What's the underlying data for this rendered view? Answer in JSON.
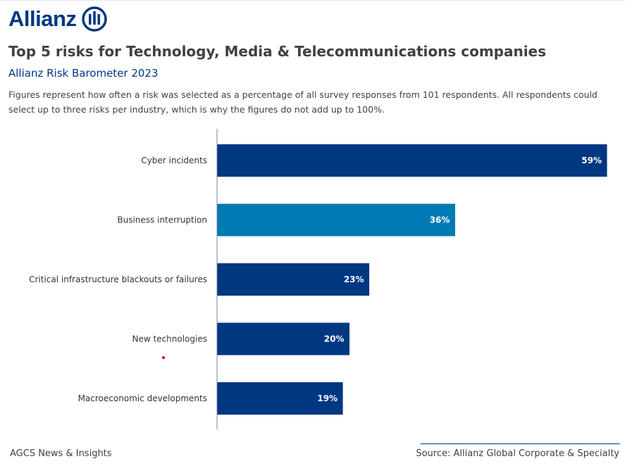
{
  "brand": {
    "logo_text": "Allianz",
    "color": "#003781"
  },
  "header": {
    "title": "Top 5 risks for Technology, Media & Telecommunications companies",
    "subtitle": "Allianz Risk Barometer 2023",
    "description": "Figures represent how often a risk was selected as a percentage of all survey responses from 101 respondents. All respondents could select up to three risks per industry, which is why the figures do not add up to 100%."
  },
  "chart_data": {
    "type": "bar",
    "orientation": "horizontal",
    "categories": [
      "Cyber incidents",
      "Business interruption",
      "Critical infrastructure blackouts or failures",
      "New technologies",
      "Macroeconomic developments"
    ],
    "values": [
      59,
      36,
      23,
      20,
      19
    ],
    "labels": [
      "59%",
      "36%",
      "23%",
      "20%",
      "19%"
    ],
    "unit": "%",
    "xlim": [
      0,
      59
    ],
    "grid": false,
    "colors": [
      "#003781",
      "#007ab3",
      "#003781",
      "#003781",
      "#003781"
    ]
  },
  "footer": {
    "left": "AGCS News & Insights",
    "right": "Source: Allianz Global Corporate & Specialty"
  }
}
